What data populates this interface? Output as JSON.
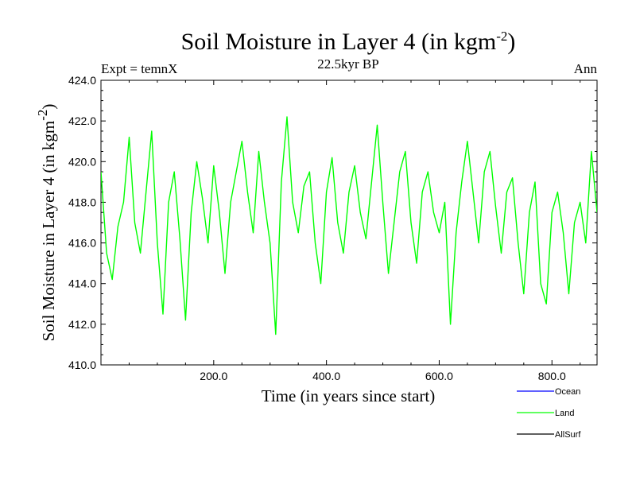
{
  "chart_data": {
    "type": "line",
    "title": "Soil Moisture in Layer 4 (in kgm",
    "title_superscript": "-2",
    "title_suffix": ")",
    "subtitle_left": "Expt = temnX",
    "subtitle_center": "22.5kyr BP",
    "subtitle_right": "Ann",
    "xlabel": "Time (in years since start)",
    "ylabel": "Soil Moisture in Layer 4 (in kgm",
    "ylabel_superscript": "-2",
    "ylabel_suffix": ")",
    "xlim": [
      0,
      880
    ],
    "ylim": [
      410.0,
      424.0
    ],
    "x_ticks": [
      200,
      400,
      600,
      800
    ],
    "x_tick_labels": [
      "200.0",
      "400.0",
      "600.0",
      "800.0"
    ],
    "y_ticks": [
      410,
      412,
      414,
      416,
      418,
      420,
      422,
      424
    ],
    "y_tick_labels": [
      "410.0",
      "412.0",
      "414.0",
      "416.0",
      "418.0",
      "420.0",
      "422.0",
      "424.0"
    ],
    "grid": false,
    "legend_position": "bottom-right",
    "colors": {
      "ocean": "#0000ff",
      "land": "#00ff00",
      "allsurf": "#000000"
    },
    "series": [
      {
        "name": "Ocean",
        "color": "#0000ff",
        "x": [],
        "values": []
      },
      {
        "name": "Land",
        "color": "#00ff00",
        "x": [
          0,
          10,
          20,
          30,
          40,
          50,
          60,
          70,
          80,
          90,
          100,
          110,
          120,
          130,
          140,
          150,
          160,
          170,
          180,
          190,
          200,
          210,
          220,
          230,
          240,
          250,
          260,
          270,
          280,
          290,
          300,
          310,
          320,
          330,
          340,
          350,
          360,
          370,
          380,
          390,
          400,
          410,
          420,
          430,
          440,
          450,
          460,
          470,
          480,
          490,
          500,
          510,
          520,
          530,
          540,
          550,
          560,
          570,
          580,
          590,
          600,
          610,
          620,
          630,
          640,
          650,
          660,
          670,
          680,
          690,
          700,
          710,
          720,
          730,
          740,
          750,
          760,
          770,
          780,
          790,
          800,
          810,
          820,
          830,
          840,
          850,
          860,
          870,
          880
        ],
        "values": [
          419.5,
          415.5,
          414.2,
          416.8,
          418.0,
          421.2,
          417.0,
          415.5,
          418.5,
          421.5,
          416.0,
          412.5,
          418.0,
          419.5,
          416.2,
          412.2,
          417.5,
          420.0,
          418.2,
          416.0,
          419.8,
          417.5,
          414.5,
          418.0,
          419.5,
          421.0,
          418.5,
          416.5,
          420.5,
          418.0,
          416.0,
          411.5,
          419.0,
          422.2,
          418.0,
          416.5,
          418.8,
          419.5,
          416.0,
          414.0,
          418.5,
          420.2,
          417.0,
          415.5,
          418.5,
          419.8,
          417.5,
          416.2,
          419.0,
          421.8,
          418.0,
          414.5,
          417.0,
          419.5,
          420.5,
          417.0,
          415.0,
          418.5,
          419.5,
          417.5,
          416.5,
          418.0,
          412.0,
          416.5,
          419.0,
          421.0,
          418.5,
          416.0,
          419.5,
          420.5,
          417.8,
          415.5,
          418.5,
          419.2,
          416.0,
          413.5,
          417.5,
          419.0,
          414.0,
          413.0,
          417.5,
          418.5,
          416.5,
          413.5,
          417.0,
          418.0,
          416.0,
          420.5,
          417.5
        ]
      },
      {
        "name": "AllSurf",
        "color": "#000000",
        "x": [],
        "values": []
      }
    ]
  }
}
